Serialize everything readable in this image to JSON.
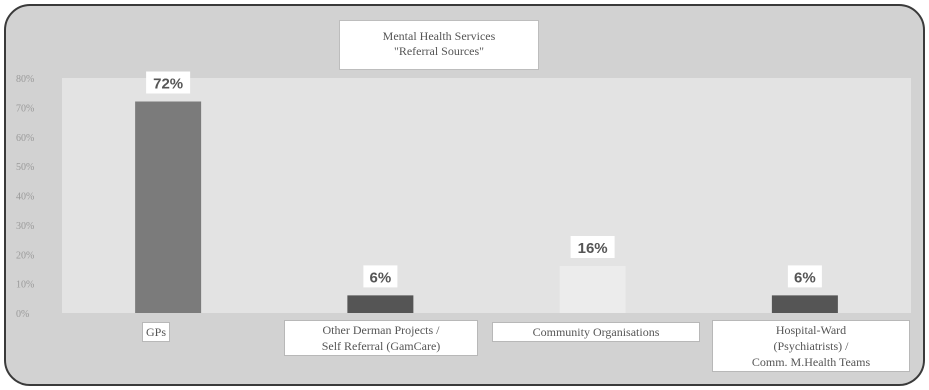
{
  "chart_data": {
    "type": "bar",
    "title": "Mental Health Services",
    "subtitle": "\"Referral Sources\"",
    "categories": [
      "GPs",
      "Other Derman Projects /\nSelf Referral (GamCare)",
      "Community Organisations",
      "Hospital-Ward\n(Psychiatrists) /\nComm. M.Health Teams"
    ],
    "values": [
      72,
      6,
      16,
      6
    ],
    "data_labels": [
      "72%",
      "6%",
      "16%",
      "6%"
    ],
    "bar_colors": [
      "#7b7b7b",
      "#555555",
      "#ececec",
      "#555555"
    ],
    "yticks": [
      "0%",
      "10%",
      "20%",
      "30%",
      "40%",
      "50%",
      "60%",
      "70%",
      "80%"
    ],
    "ylim": [
      0,
      80
    ],
    "grid": false,
    "legend": "none"
  }
}
